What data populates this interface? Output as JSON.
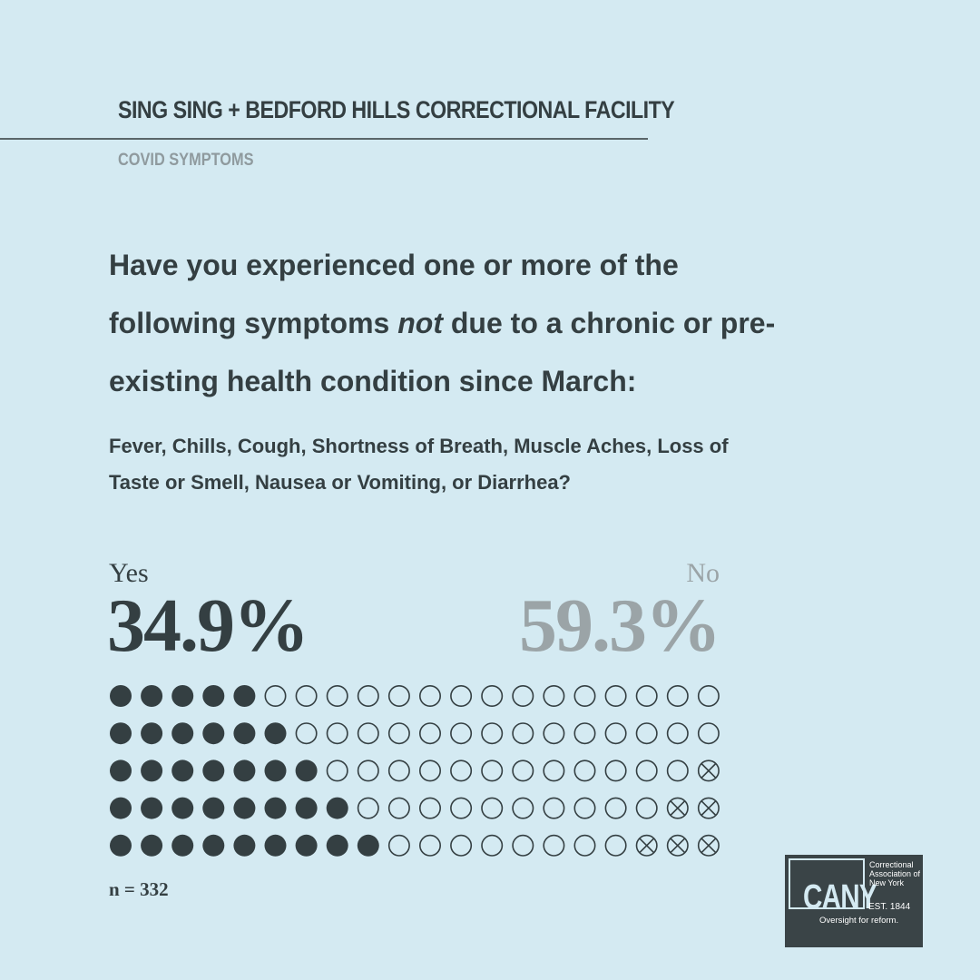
{
  "header": {
    "title": "SING SING + BEDFORD HILLS CORRECTIONAL FACILITY",
    "subtitle": "COVID SYMPTOMS"
  },
  "question": {
    "parts": [
      "Have you experienced one or more of the following symptoms ",
      "not",
      " due to a chronic or pre-existing health condition since March:"
    ],
    "symptoms": "Fever, Chills, Cough, Shortness of Breath, Muscle Aches, Loss of Taste or Smell, Nausea or Vomiting, or Diarrhea?"
  },
  "chart_data": {
    "type": "waffle",
    "series": [
      {
        "name": "Yes",
        "values": [
          34.9
        ],
        "value_labels": [
          "34.9%"
        ],
        "color": "#343f42"
      },
      {
        "name": "No",
        "values": [
          59.3
        ],
        "value_labels": [
          "59.3%"
        ],
        "color": "#9ba4a7"
      },
      {
        "name": null,
        "values": [
          5.8
        ],
        "color": "#343f42"
      }
    ],
    "note": "n = 332"
  },
  "logo": {
    "name": "Correctional Association of New York",
    "mark": "CANY",
    "est": "EST. 1844",
    "tagline": "Oversight for reform."
  }
}
